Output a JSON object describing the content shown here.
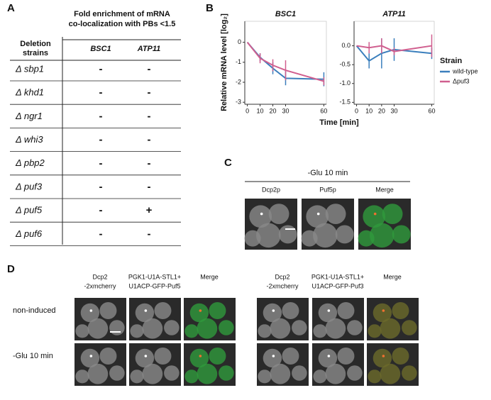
{
  "panel_labels": [
    "A",
    "B",
    "C",
    "D"
  ],
  "table": {
    "title": [
      "Fold enrichment of mRNA",
      "co-localization with PBs <1.5"
    ],
    "row_header": [
      "Deletion",
      "strains"
    ],
    "columns": [
      "BSC1",
      "ATP11"
    ],
    "rows": [
      [
        "Δ sbp1",
        "-",
        "-"
      ],
      [
        "Δ khd1",
        "-",
        "-"
      ],
      [
        "Δ ngr1",
        "-",
        "-"
      ],
      [
        "Δ whi3",
        "-",
        "-"
      ],
      [
        "Δ pbp2",
        "-",
        "-"
      ],
      [
        "Δ puf3",
        "-",
        "-"
      ],
      [
        "Δ puf5",
        "-",
        "+"
      ],
      [
        "Δ puf6",
        "-",
        "-"
      ]
    ]
  },
  "chart_data": [
    {
      "type": "line",
      "title": "BSC1",
      "y_label": "Relative mRNA level [log₂]",
      "x_label": "Time [min]",
      "legend_title": "Strain",
      "x": [
        0,
        10,
        20,
        30,
        60
      ],
      "xlim": [
        -2,
        62
      ],
      "xticks": [
        0,
        10,
        20,
        30,
        60
      ],
      "ylim": [
        -3.1,
        1.05
      ],
      "yticks": [
        0,
        -1,
        -2,
        -3
      ],
      "series": [
        {
          "name": "wild-type",
          "color": "#3b7fbd",
          "values": [
            0,
            -0.75,
            -1.3,
            -1.8,
            -1.85
          ],
          "errors": [
            0,
            0.2,
            0.3,
            0.35,
            0.35
          ]
        },
        {
          "name": "Δpuf3",
          "color": "#d05f8f",
          "values": [
            0,
            -0.8,
            -1.15,
            -1.4,
            -1.95
          ],
          "errors": [
            0,
            0.25,
            0.3,
            0.5,
            0.2
          ]
        }
      ]
    },
    {
      "type": "line",
      "title": "ATP11",
      "x": [
        0,
        10,
        20,
        30,
        60
      ],
      "xlim": [
        -2,
        62
      ],
      "xticks": [
        0,
        10,
        20,
        30,
        60
      ],
      "ylim": [
        -1.55,
        0.65
      ],
      "yticks": [
        {
          "value": 0,
          "label": "0.0"
        },
        -0.5,
        {
          "value": -1,
          "label": "-1.0"
        },
        -1.5
      ],
      "series": [
        {
          "name": "wild-type",
          "color": "#3b7fbd",
          "values": [
            0,
            -0.4,
            -0.2,
            -0.1,
            -0.2
          ],
          "errors": [
            0,
            0.2,
            0.4,
            0.3,
            0.15
          ]
        },
        {
          "name": "Δpuf3",
          "color": "#d05f8f",
          "values": [
            0,
            -0.05,
            0,
            -0.15,
            0
          ],
          "errors": [
            0,
            0.15,
            0.2,
            0.1,
            0.3
          ]
        }
      ]
    }
  ],
  "panel_c": {
    "title": "-Glu 10 min",
    "columns": [
      "Dcp2p",
      "Puf5p",
      "Merge"
    ]
  },
  "panel_d": {
    "rows": [
      "non-induced",
      "-Glu 10 min"
    ],
    "groups": [
      {
        "columns": [
          [
            "Dcp2",
            "-2xmcherry"
          ],
          [
            "PGK1-U1A-STL1+",
            "U1ACP-GFP-Puf5"
          ],
          [
            "Merge"
          ]
        ]
      },
      {
        "columns": [
          [
            "Dcp2",
            "-2xmcherry"
          ],
          [
            "PGK1-U1A-STL1+",
            "U1ACP-GFP-Puf3"
          ],
          [
            "Merge"
          ]
        ]
      }
    ]
  }
}
